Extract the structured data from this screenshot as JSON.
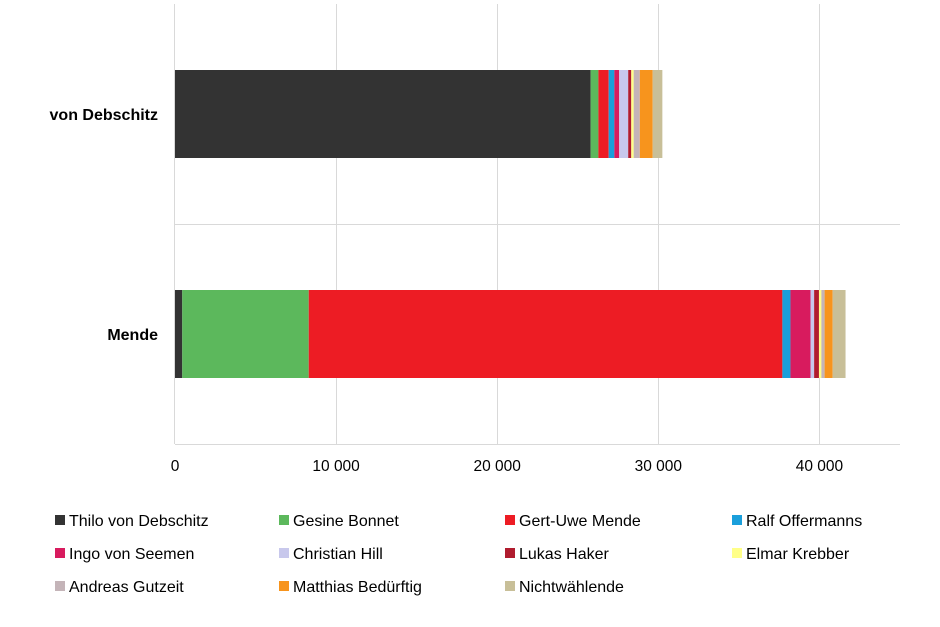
{
  "chart_data": {
    "type": "bar",
    "orientation": "horizontal",
    "stacked": true,
    "title": "",
    "xlabel": "",
    "ylabel": "",
    "xlim": [
      0,
      45000
    ],
    "xticks": [
      0,
      10000,
      20000,
      30000,
      40000
    ],
    "xtick_labels": [
      "0",
      "10 000",
      "20 000",
      "30 000",
      "40 000"
    ],
    "grid": "vertical",
    "legend_position": "bottom",
    "categories": [
      "von Debschitz",
      "Mende"
    ],
    "series": [
      {
        "name": "Thilo von Debschitz",
        "color": "#333333",
        "values": [
          25800,
          450
        ]
      },
      {
        "name": "Gesine Bonnet",
        "color": "#5cb85c",
        "values": [
          480,
          7850
        ]
      },
      {
        "name": "Gert-Uwe Mende",
        "color": "#ed1c24",
        "values": [
          640,
          29400
        ]
      },
      {
        "name": "Ralf Offermanns",
        "color": "#1a9fdb",
        "values": [
          350,
          500
        ]
      },
      {
        "name": "Ingo von Seemen",
        "color": "#d81b5e",
        "values": [
          300,
          1250
        ]
      },
      {
        "name": "Christian Hill",
        "color": "#c8c8ec",
        "values": [
          560,
          220
        ]
      },
      {
        "name": "Lukas Haker",
        "color": "#b01c2e",
        "values": [
          190,
          300
        ]
      },
      {
        "name": "Elmar Krebber",
        "color": "#ffff88",
        "values": [
          150,
          150
        ]
      },
      {
        "name": "Andreas Gutzeit",
        "color": "#c4b4b8",
        "values": [
          380,
          200
        ]
      },
      {
        "name": "Matthias Bedürftig",
        "color": "#f7941d",
        "values": [
          800,
          500
        ]
      },
      {
        "name": "Nichtwählende",
        "color": "#c8bf98",
        "values": [
          600,
          800
        ]
      }
    ]
  }
}
